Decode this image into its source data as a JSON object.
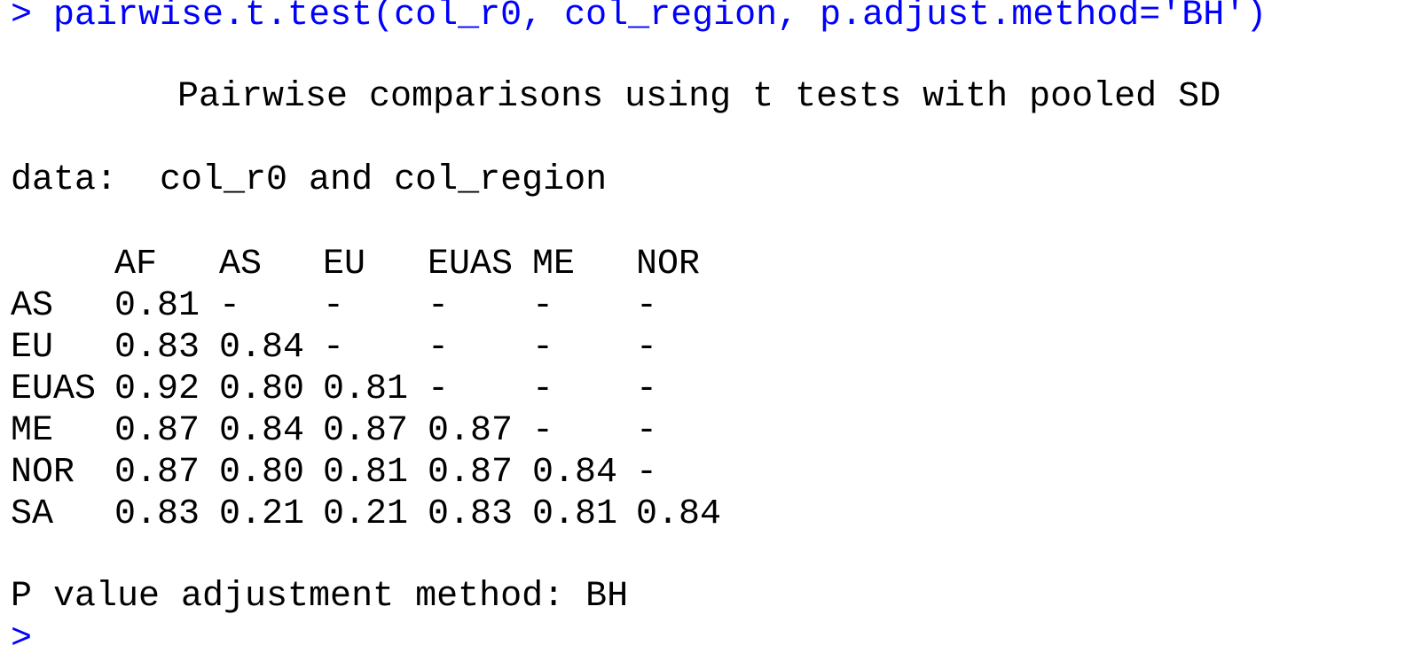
{
  "console": {
    "prompt": "> ",
    "command": "pairwise.t.test(col_r0, col_region, p.adjust.method='BH')",
    "title": "Pairwise comparisons using t tests with pooled SD",
    "data_line": "data:  col_r0 and col_region",
    "footer": "P value adjustment method: BH",
    "next_prompt": ">"
  },
  "table": {
    "columns": [
      "AF",
      "AS",
      "EU",
      "EUAS",
      "ME",
      "NOR"
    ],
    "rows": [
      {
        "label": "AS",
        "cells": [
          "0.81",
          "-",
          "-",
          "-",
          "-",
          "-"
        ]
      },
      {
        "label": "EU",
        "cells": [
          "0.83",
          "0.84",
          "-",
          "-",
          "-",
          "-"
        ]
      },
      {
        "label": "EUAS",
        "cells": [
          "0.92",
          "0.80",
          "0.81",
          "-",
          "-",
          "-"
        ]
      },
      {
        "label": "ME",
        "cells": [
          "0.87",
          "0.84",
          "0.87",
          "0.87",
          "-",
          "-"
        ]
      },
      {
        "label": "NOR",
        "cells": [
          "0.87",
          "0.80",
          "0.81",
          "0.87",
          "0.84",
          "-"
        ]
      },
      {
        "label": "SA",
        "cells": [
          "0.83",
          "0.21",
          "0.21",
          "0.83",
          "0.81",
          "0.84"
        ]
      }
    ]
  },
  "colors": {
    "command": "#0000ff",
    "output": "#000000",
    "background": "#ffffff"
  }
}
